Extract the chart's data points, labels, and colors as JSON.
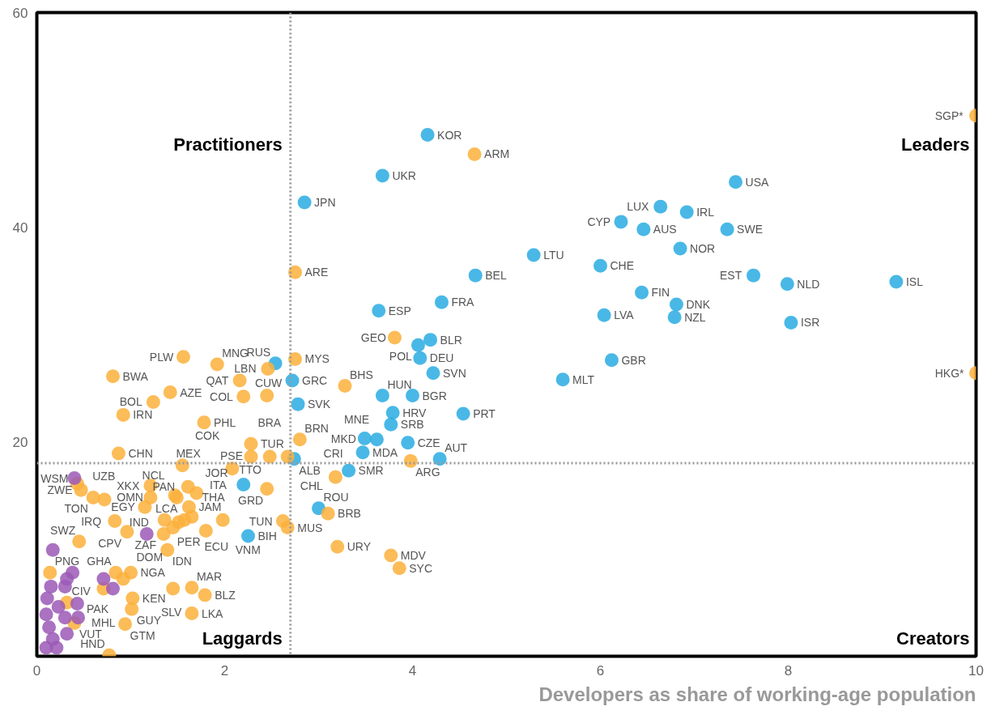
{
  "chart_data": {
    "type": "scatter",
    "xlabel": "Developers as share of working-age population",
    "xlim": [
      0,
      10
    ],
    "ylim": [
      0,
      60
    ],
    "xticks": [
      0,
      2,
      4,
      6,
      8,
      10
    ],
    "yticks": [
      20,
      40,
      60
    ],
    "grid": false,
    "marker": "circle",
    "ref_lines": [
      {
        "axis": "x",
        "value": 2.7,
        "line_style": "dotted",
        "color": "#999999"
      },
      {
        "axis": "y",
        "value": 18,
        "line_style": "dotted",
        "color": "#999999"
      }
    ],
    "series": [
      {
        "color": "#29abe2",
        "x": [
          4.16,
          3.68,
          2.85,
          7.44,
          6.22,
          6.64,
          6.92,
          6.46,
          7.35,
          6.85,
          5.29,
          6.0,
          4.67,
          7.63,
          7.99,
          9.15,
          6.44,
          6.81,
          6.04,
          6.79,
          8.03,
          3.64,
          4.31,
          4.19,
          4.06,
          4.08,
          4.22,
          6.12,
          5.6,
          3.68,
          4.0,
          3.79,
          4.54,
          3.77,
          3.49,
          3.62,
          3.95,
          3.47,
          4.29,
          3.32,
          2.54,
          2.72,
          2.78,
          2.74,
          2.2,
          2.25,
          3.0
        ],
        "values": [
          48.6,
          44.8,
          42.3,
          44.2,
          40.5,
          41.9,
          41.4,
          39.8,
          39.8,
          38.0,
          37.4,
          36.4,
          35.5,
          35.5,
          34.7,
          34.9,
          33.9,
          32.8,
          31.8,
          31.6,
          31.1,
          32.2,
          33.0,
          29.5,
          29.0,
          27.8,
          26.4,
          27.6,
          25.8,
          24.3,
          24.3,
          22.7,
          22.6,
          21.6,
          20.3,
          20.2,
          19.9,
          19.0,
          18.4,
          17.3,
          27.3,
          25.7,
          23.5,
          18.4,
          16.0,
          11.2,
          13.8
        ]
      },
      {
        "color": "#fbb03b",
        "x": [
          4.66,
          2.75,
          10.0,
          10.0,
          3.81,
          3.28,
          3.98,
          3.18,
          3.2,
          3.77,
          3.86,
          3.1,
          2.62,
          2.67,
          2.46,
          2.75,
          2.45,
          2.2,
          2.16,
          1.92,
          1.56,
          1.78,
          2.8,
          2.28,
          2.28,
          2.08,
          2.48,
          2.67,
          2.45,
          1.61,
          1.62,
          1.65,
          1.57,
          1.98,
          1.8,
          1.51,
          1.45,
          0.81,
          1.42,
          1.24,
          0.92,
          0.87,
          1.55,
          1.47,
          1.7,
          1.49,
          1.21,
          1.21,
          1.15,
          1.36,
          1.35,
          1.39,
          0.83,
          0.96,
          0.6,
          0.47,
          0.43,
          0.72,
          0.45,
          0.14,
          0.84,
          1.0,
          0.92,
          0.71,
          1.02,
          1.01,
          0.94,
          0.77,
          0.32,
          0.4,
          1.45,
          1.65,
          1.79,
          1.65
        ],
        "values": [
          46.8,
          35.8,
          50.4,
          26.4,
          29.7,
          25.2,
          18.2,
          16.7,
          10.2,
          9.4,
          8.2,
          13.3,
          12.6,
          12.0,
          26.8,
          27.7,
          24.3,
          24.2,
          25.7,
          27.2,
          27.9,
          21.8,
          20.2,
          19.8,
          18.6,
          17.5,
          18.6,
          18.6,
          15.6,
          15.8,
          13.9,
          13.0,
          12.7,
          12.7,
          11.7,
          12.5,
          12.0,
          26.1,
          24.6,
          23.7,
          22.5,
          18.9,
          17.8,
          15.0,
          15.2,
          14.8,
          15.9,
          14.8,
          13.9,
          12.7,
          11.4,
          9.9,
          12.6,
          11.6,
          14.8,
          15.5,
          16.1,
          14.6,
          10.7,
          7.8,
          7.8,
          7.8,
          7.2,
          6.3,
          5.4,
          4.4,
          3.0,
          0.1,
          5.0,
          3.1,
          6.3,
          6.4,
          5.7,
          4.0
        ]
      },
      {
        "color": "#9b59b6",
        "x": [
          0.17,
          0.38,
          0.32,
          0.15,
          0.3,
          0.11,
          0.23,
          0.43,
          0.1,
          0.3,
          0.44,
          0.13,
          0.32,
          0.17,
          0.1,
          0.21,
          0.71,
          0.81,
          0.4,
          1.17
        ],
        "values": [
          9.9,
          7.8,
          7.2,
          6.5,
          6.5,
          5.4,
          4.6,
          4.9,
          3.9,
          3.6,
          3.6,
          2.7,
          2.1,
          1.6,
          0.8,
          0.8,
          7.2,
          6.3,
          16.6,
          11.4
        ]
      }
    ],
    "annotations": [
      "Practitioners",
      "Leaders",
      "Laggards",
      "Creators",
      {
        "text": "KOR",
        "x": 4.16,
        "y": 48.6
      },
      {
        "text": "UKR",
        "x": 3.68,
        "y": 44.8
      },
      {
        "text": "JPN",
        "x": 2.85,
        "y": 42.3
      },
      {
        "text": "USA",
        "x": 7.44,
        "y": 44.2
      },
      {
        "text": "CYP",
        "x": 6.22,
        "y": 40.5
      },
      {
        "text": "LUX",
        "x": 6.64,
        "y": 41.9
      },
      {
        "text": "IRL",
        "x": 6.92,
        "y": 41.4
      },
      {
        "text": "AUS",
        "x": 6.46,
        "y": 39.8
      },
      {
        "text": "SWE",
        "x": 7.35,
        "y": 39.8
      },
      {
        "text": "NOR",
        "x": 6.85,
        "y": 38.0
      },
      {
        "text": "LTU",
        "x": 5.29,
        "y": 37.4
      },
      {
        "text": "CHE",
        "x": 6.0,
        "y": 36.4
      },
      {
        "text": "BEL",
        "x": 4.67,
        "y": 35.5
      },
      {
        "text": "EST",
        "x": 7.63,
        "y": 35.5
      },
      {
        "text": "NLD",
        "x": 7.99,
        "y": 34.7
      },
      {
        "text": "ISL",
        "x": 9.15,
        "y": 34.9
      },
      {
        "text": "FIN",
        "x": 6.44,
        "y": 33.9
      },
      {
        "text": "DNK",
        "x": 6.81,
        "y": 32.8
      },
      {
        "text": "LVA",
        "x": 6.04,
        "y": 31.8
      },
      {
        "text": "NZL",
        "x": 6.79,
        "y": 31.6
      },
      {
        "text": "ISR",
        "x": 8.03,
        "y": 31.1
      },
      {
        "text": "ESP",
        "x": 3.64,
        "y": 32.2
      },
      {
        "text": "FRA",
        "x": 4.31,
        "y": 33.0
      },
      {
        "text": "BLR",
        "x": 4.19,
        "y": 29.5
      },
      {
        "text": "POL",
        "x": 4.06,
        "y": 29.0
      },
      {
        "text": "DEU",
        "x": 4.08,
        "y": 27.8
      },
      {
        "text": "SVN",
        "x": 4.22,
        "y": 26.4
      },
      {
        "text": "GBR",
        "x": 6.12,
        "y": 27.6
      },
      {
        "text": "MLT",
        "x": 5.6,
        "y": 25.8
      },
      {
        "text": "HUN",
        "x": 3.68,
        "y": 24.3
      },
      {
        "text": "BGR",
        "x": 4.0,
        "y": 24.3
      },
      {
        "text": "HRV",
        "x": 3.79,
        "y": 22.7
      },
      {
        "text": "PRT",
        "x": 4.54,
        "y": 22.6
      },
      {
        "text": "SRB",
        "x": 3.77,
        "y": 21.6
      },
      {
        "text": "MKD",
        "x": 3.49,
        "y": 20.3
      },
      {
        "text": "MNE",
        "x": 3.62,
        "y": 20.2
      },
      {
        "text": "CZE",
        "x": 3.95,
        "y": 19.9
      },
      {
        "text": "MDA",
        "x": 3.47,
        "y": 19.0
      },
      {
        "text": "AUT",
        "x": 4.29,
        "y": 18.4
      },
      {
        "text": "SMR",
        "x": 3.32,
        "y": 17.3
      },
      {
        "text": "RUS",
        "x": 2.54,
        "y": 27.3
      },
      {
        "text": "GRC",
        "x": 2.72,
        "y": 25.7
      },
      {
        "text": "SVK",
        "x": 2.78,
        "y": 23.5
      },
      {
        "text": "ALB",
        "x": 2.74,
        "y": 18.4
      },
      {
        "text": "ITA",
        "x": 2.2,
        "y": 16.0
      },
      {
        "text": "BIH",
        "x": 2.25,
        "y": 11.2
      },
      {
        "text": "ROU",
        "x": 3.0,
        "y": 13.8
      },
      {
        "text": "ARM",
        "x": 4.66,
        "y": 46.8
      },
      {
        "text": "ARE",
        "x": 2.75,
        "y": 35.8
      },
      {
        "text": "SGP*",
        "x": 10.0,
        "y": 50.4
      },
      {
        "text": "HKG*",
        "x": 10.0,
        "y": 26.4
      },
      {
        "text": "GEO",
        "x": 3.81,
        "y": 29.7
      },
      {
        "text": "BHS",
        "x": 3.28,
        "y": 25.2
      },
      {
        "text": "ARG",
        "x": 3.98,
        "y": 18.2
      },
      {
        "text": "CRI",
        "x": 3.18,
        "y": 16.7
      },
      {
        "text": "URY",
        "x": 3.2,
        "y": 10.2
      },
      {
        "text": "MDV",
        "x": 3.77,
        "y": 9.4
      },
      {
        "text": "SYC",
        "x": 3.86,
        "y": 8.2
      },
      {
        "text": "BRB",
        "x": 3.1,
        "y": 13.3
      },
      {
        "text": "TUN",
        "x": 2.62,
        "y": 12.6
      },
      {
        "text": "MUS",
        "x": 2.67,
        "y": 12.0
      },
      {
        "text": "LBN",
        "x": 2.46,
        "y": 26.8
      },
      {
        "text": "MYS",
        "x": 2.75,
        "y": 27.7
      },
      {
        "text": "CUW",
        "x": 2.45,
        "y": 24.3
      },
      {
        "text": "COL",
        "x": 2.2,
        "y": 24.2
      },
      {
        "text": "QAT",
        "x": 2.16,
        "y": 25.7
      },
      {
        "text": "MNG",
        "x": 1.92,
        "y": 27.2
      },
      {
        "text": "PLW",
        "x": 1.56,
        "y": 27.9
      },
      {
        "text": "PHL",
        "x": 1.78,
        "y": 21.8
      },
      {
        "text": "BRN",
        "x": 2.8,
        "y": 20.2
      },
      {
        "text": "TUR",
        "x": 2.28,
        "y": 19.8
      },
      {
        "text": "TTO",
        "x": 2.28,
        "y": 18.6
      },
      {
        "text": "PSE",
        "x": 2.08,
        "y": 17.5
      },
      {
        "text": "BRA",
        "x": 2.48,
        "y": 18.6
      },
      {
        "text": "CHL",
        "x": 2.67,
        "y": 18.6
      },
      {
        "text": "GRD",
        "x": 2.45,
        "y": 15.6
      },
      {
        "text": "MEX",
        "x": 1.61,
        "y": 15.8
      },
      {
        "text": "JAM",
        "x": 1.62,
        "y": 13.9
      },
      {
        "text": "ECU",
        "x": 1.65,
        "y": 13.0
      },
      {
        "text": "LCA",
        "x": 1.57,
        "y": 12.7
      },
      {
        "text": "VNM",
        "x": 1.98,
        "y": 12.7
      },
      {
        "text": "PER",
        "x": 1.8,
        "y": 11.7
      },
      {
        "text": "IND",
        "x": 1.51,
        "y": 12.5
      },
      {
        "text": "DOM",
        "x": 1.45,
        "y": 12.0
      },
      {
        "text": "BWA",
        "x": 0.81,
        "y": 26.1
      },
      {
        "text": "AZE",
        "x": 1.42,
        "y": 24.6
      },
      {
        "text": "BOL",
        "x": 1.24,
        "y": 23.7
      },
      {
        "text": "IRN",
        "x": 0.92,
        "y": 22.5
      },
      {
        "text": "CHN",
        "x": 0.87,
        "y": 18.9
      },
      {
        "text": "COK",
        "x": 1.55,
        "y": 17.8
      },
      {
        "text": "NCL",
        "x": 1.47,
        "y": 15.0
      },
      {
        "text": "JOR",
        "x": 1.7,
        "y": 15.2
      },
      {
        "text": "THA",
        "x": 1.49,
        "y": 14.8
      },
      {
        "text": "XKX",
        "x": 1.21,
        "y": 15.9
      },
      {
        "text": "OMN",
        "x": 1.21,
        "y": 14.8
      },
      {
        "text": "EGY",
        "x": 1.15,
        "y": 13.9
      },
      {
        "text": "PAN",
        "x": 1.36,
        "y": 12.7
      },
      {
        "text": "ZAF",
        "x": 1.35,
        "y": 11.4
      },
      {
        "text": "IDN",
        "x": 1.39,
        "y": 9.9
      },
      {
        "text": "IRQ",
        "x": 0.83,
        "y": 12.6
      },
      {
        "text": "CPV",
        "x": 0.96,
        "y": 11.6
      },
      {
        "text": "TON",
        "x": 0.6,
        "y": 14.8
      },
      {
        "text": "ZWE",
        "x": 0.47,
        "y": 15.5
      },
      {
        "text": "UZB",
        "x": 0.72,
        "y": 14.6
      },
      {
        "text": "SWZ",
        "x": 0.45,
        "y": 10.7
      },
      {
        "text": "PNG",
        "x": 0.14,
        "y": 7.8
      },
      {
        "text": "GHA",
        "x": 0.84,
        "y": 7.8
      },
      {
        "text": "NGA",
        "x": 1.0,
        "y": 7.8
      },
      {
        "text": "PAK",
        "x": 0.92,
        "y": 7.2
      },
      {
        "text": "MHL",
        "x": 0.71,
        "y": 6.3
      },
      {
        "text": "KEN",
        "x": 1.02,
        "y": 5.4
      },
      {
        "text": "GUY",
        "x": 1.01,
        "y": 4.4
      },
      {
        "text": "GTM",
        "x": 0.94,
        "y": 3.0
      },
      {
        "text": "HND",
        "x": 0.77,
        "y": 0.1
      },
      {
        "text": "CIV",
        "x": 0.32,
        "y": 5.0
      },
      {
        "text": "VUT",
        "x": 0.4,
        "y": 3.1
      },
      {
        "text": "SLV",
        "x": 1.45,
        "y": 6.3
      },
      {
        "text": "MAR",
        "x": 1.65,
        "y": 6.4
      },
      {
        "text": "BLZ",
        "x": 1.79,
        "y": 5.7
      },
      {
        "text": "LKA",
        "x": 1.65,
        "y": 4.0
      },
      {
        "text": "WSM",
        "x": 0.4,
        "y": 16.6
      }
    ]
  }
}
